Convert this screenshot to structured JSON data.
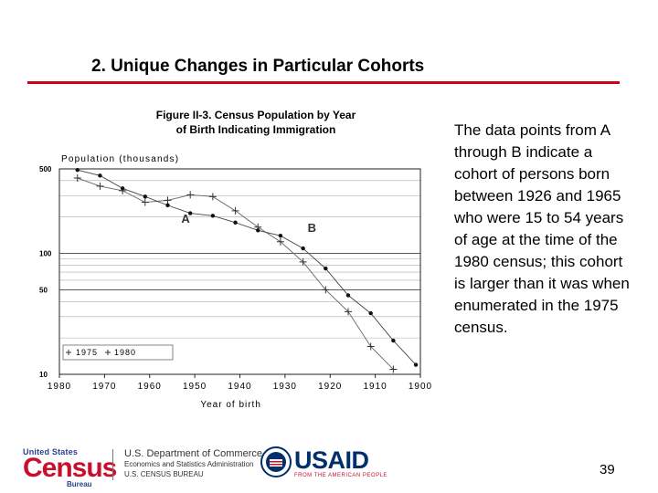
{
  "slide": {
    "title": "2. Unique Changes in Particular Cohorts",
    "description": "The data points from A through B indicate a cohort of persons born between 1926 and 1965 who were 15 to 54 years of age at the time of the 1980 census; this cohort is larger than it was when enumerated in the 1975 census.",
    "page_number": "39",
    "rule_color": "#d0021b"
  },
  "figure": {
    "title_line1": "Figure II-3. Census Population by Year",
    "title_line2": "of Birth Indicating Immigration"
  },
  "chart_data": {
    "type": "line",
    "ylabel": "Population (thousands)",
    "xlabel": "Year of birth",
    "yscale": "log",
    "ylim": [
      10,
      500
    ],
    "xlim": [
      1980,
      1900
    ],
    "x_reversed": true,
    "y_ticks": [
      10,
      50,
      100,
      500
    ],
    "x_ticks": [
      1980,
      1970,
      1960,
      1950,
      1940,
      1930,
      1920,
      1910,
      1900
    ],
    "grid": true,
    "legend_position": "bottom-left",
    "legend_labels": [
      "1975",
      "1980"
    ],
    "annotations": [
      {
        "text": "A",
        "x": 1953,
        "y": 180
      },
      {
        "text": "B",
        "x": 1925,
        "y": 150
      }
    ],
    "series": [
      {
        "name": "1975",
        "marker": "plus",
        "x": [
          1976,
          1971,
          1966,
          1961,
          1956,
          1951,
          1946,
          1941,
          1936,
          1931,
          1926,
          1921,
          1916,
          1911,
          1906
        ],
        "y": [
          420,
          360,
          330,
          265,
          275,
          305,
          295,
          225,
          165,
          125,
          85,
          50,
          33,
          17,
          11
        ]
      },
      {
        "name": "1980",
        "marker": "dot",
        "x": [
          1976,
          1971,
          1966,
          1961,
          1956,
          1951,
          1946,
          1941,
          1936,
          1931,
          1926,
          1921,
          1916,
          1911,
          1906,
          1901
        ],
        "y": [
          490,
          440,
          345,
          295,
          250,
          215,
          205,
          180,
          155,
          140,
          110,
          75,
          45,
          32,
          19,
          12
        ]
      }
    ]
  },
  "footer": {
    "census_top": "United States",
    "census_main": "Census",
    "census_sub": "Bureau",
    "dept_line1": "U.S. Department of Commerce",
    "dept_line2": "Economics and Statistics Administration",
    "dept_line3": "U.S. CENSUS BUREAU",
    "usaid_main": "USAID",
    "usaid_sub": "FROM THE AMERICAN PEOPLE"
  }
}
